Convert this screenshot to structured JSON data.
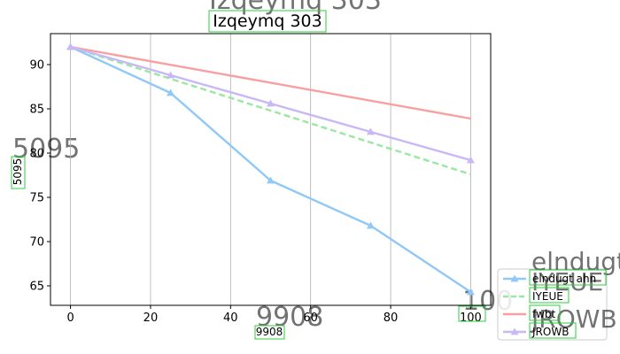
{
  "chart_data": {
    "type": "line",
    "title": "Izqeymq 303",
    "title_ghost": "Izqeymq 303",
    "xlabel": "9908",
    "ylabel": "5095",
    "xlim": [
      -5,
      105
    ],
    "ylim": [
      62.8,
      93.5
    ],
    "x_ticks": [
      0,
      20,
      40,
      60,
      80,
      100
    ],
    "y_ticks": [
      65,
      70,
      75,
      80,
      85,
      90
    ],
    "grid": "x-only",
    "legend_position": "lower-right",
    "corner_label": "100",
    "series": [
      {
        "name": "elndugt ahn",
        "color": "#90c8f8",
        "style": "solid",
        "marker": "triangle",
        "x": [
          0,
          25,
          50,
          75,
          100
        ],
        "y": [
          92.0,
          86.8,
          76.9,
          71.8,
          64.3
        ]
      },
      {
        "name": "IYEUE",
        "color": "#98e8a0",
        "style": "dashed",
        "marker": "none",
        "x": [
          0,
          100
        ],
        "y": [
          92.0,
          77.6
        ]
      },
      {
        "name": "fwbt",
        "color": "#f8a0a0",
        "style": "solid",
        "marker": "none",
        "x": [
          0,
          100
        ],
        "y": [
          92.0,
          83.9
        ]
      },
      {
        "name": "JROWB",
        "color": "#c8b8f8",
        "style": "solid",
        "marker": "triangle",
        "x": [
          0,
          25,
          50,
          75,
          100
        ],
        "y": [
          92.0,
          88.8,
          85.6,
          82.4,
          79.2
        ]
      }
    ]
  }
}
